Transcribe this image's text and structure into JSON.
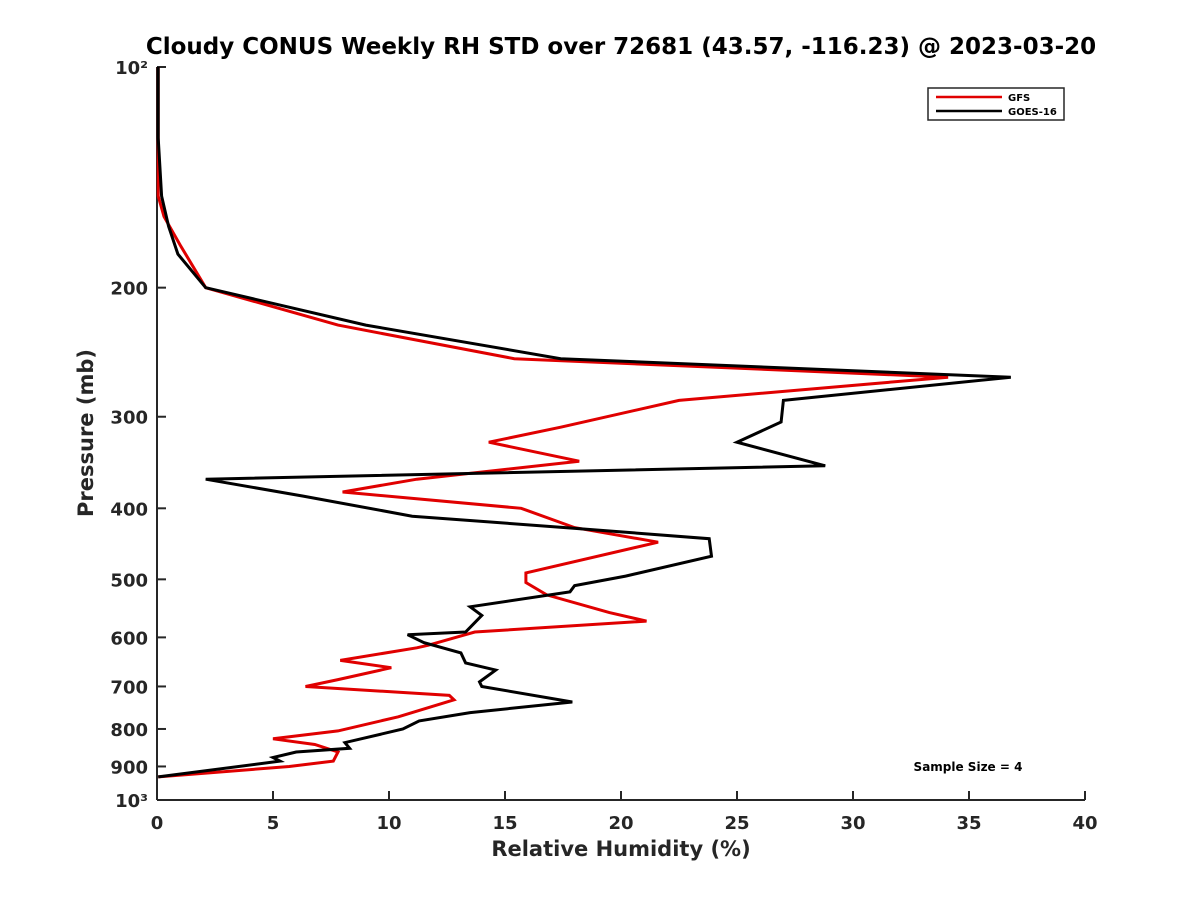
{
  "chart_data": {
    "type": "line",
    "title": "Cloudy CONUS Weekly RH STD over 72681 (43.57, -116.23) @ 2023-03-20",
    "xlabel": "Relative Humidity (%)",
    "ylabel": "Pressure (mb)",
    "xlim": [
      0,
      40
    ],
    "ylim": [
      100,
      1000
    ],
    "y_scale": "log",
    "y_reversed": true,
    "x_ticks": [
      0,
      5,
      10,
      15,
      20,
      25,
      30,
      35,
      40
    ],
    "x_tick_labels": [
      "0",
      "5",
      "10",
      "15",
      "20",
      "25",
      "30",
      "35",
      "40"
    ],
    "y_ticks": [
      100,
      200,
      300,
      400,
      500,
      600,
      700,
      800,
      900,
      1000
    ],
    "y_tick_labels": [
      "10²",
      "200",
      "300",
      "400",
      "500",
      "600",
      "700",
      "800",
      "900",
      "10³"
    ],
    "grid": false,
    "legend_position": "top-right",
    "annotation": "Sample Size = 4",
    "series": [
      {
        "name": "GFS",
        "color": "#e00000",
        "points": [
          [
            0.05,
            100
          ],
          [
            0.05,
            125
          ],
          [
            0.05,
            150
          ],
          [
            0.3,
            160
          ],
          [
            1.0,
            175
          ],
          [
            2.1,
            200
          ],
          [
            7.8,
            225
          ],
          [
            15.4,
            250
          ],
          [
            34.1,
            265
          ],
          [
            22.5,
            285
          ],
          [
            17.4,
            310
          ],
          [
            14.3,
            325
          ],
          [
            18.2,
            345
          ],
          [
            11.2,
            365
          ],
          [
            8.0,
            380
          ],
          [
            15.7,
            400
          ],
          [
            18.0,
            425
          ],
          [
            21.6,
            445
          ],
          [
            15.9,
            490
          ],
          [
            15.9,
            505
          ],
          [
            16.8,
            525
          ],
          [
            19.5,
            555
          ],
          [
            21.1,
            570
          ],
          [
            13.7,
            590
          ],
          [
            11.7,
            615
          ],
          [
            11.2,
            620
          ],
          [
            7.9,
            645
          ],
          [
            10.1,
            660
          ],
          [
            7.8,
            685
          ],
          [
            6.4,
            700
          ],
          [
            12.6,
            720
          ],
          [
            12.8,
            730
          ],
          [
            10.4,
            770
          ],
          [
            7.8,
            805
          ],
          [
            5.0,
            825
          ],
          [
            6.8,
            840
          ],
          [
            7.8,
            860
          ],
          [
            7.6,
            885
          ],
          [
            5.7,
            900
          ],
          [
            0.05,
            930
          ]
        ]
      },
      {
        "name": "GOES-16",
        "color": "#000000",
        "points": [
          [
            0.05,
            100
          ],
          [
            0.05,
            125
          ],
          [
            0.2,
            150
          ],
          [
            0.5,
            165
          ],
          [
            0.9,
            180
          ],
          [
            2.1,
            200
          ],
          [
            9.0,
            225
          ],
          [
            17.4,
            250
          ],
          [
            36.8,
            265
          ],
          [
            27.0,
            285
          ],
          [
            26.9,
            305
          ],
          [
            25.0,
            325
          ],
          [
            28.8,
            350
          ],
          [
            2.1,
            365
          ],
          [
            6.3,
            385
          ],
          [
            11.0,
            410
          ],
          [
            17.6,
            425
          ],
          [
            23.8,
            440
          ],
          [
            23.9,
            465
          ],
          [
            20.2,
            495
          ],
          [
            18.0,
            510
          ],
          [
            17.8,
            520
          ],
          [
            13.5,
            545
          ],
          [
            14.0,
            560
          ],
          [
            13.3,
            590
          ],
          [
            10.8,
            595
          ],
          [
            11.5,
            610
          ],
          [
            13.1,
            630
          ],
          [
            13.3,
            650
          ],
          [
            14.6,
            665
          ],
          [
            13.9,
            690
          ],
          [
            14.0,
            700
          ],
          [
            17.9,
            735
          ],
          [
            13.5,
            760
          ],
          [
            11.3,
            780
          ],
          [
            10.6,
            800
          ],
          [
            8.1,
            835
          ],
          [
            8.3,
            850
          ],
          [
            6.0,
            860
          ],
          [
            5.0,
            875
          ],
          [
            5.3,
            885
          ],
          [
            0.05,
            930
          ]
        ]
      }
    ]
  }
}
